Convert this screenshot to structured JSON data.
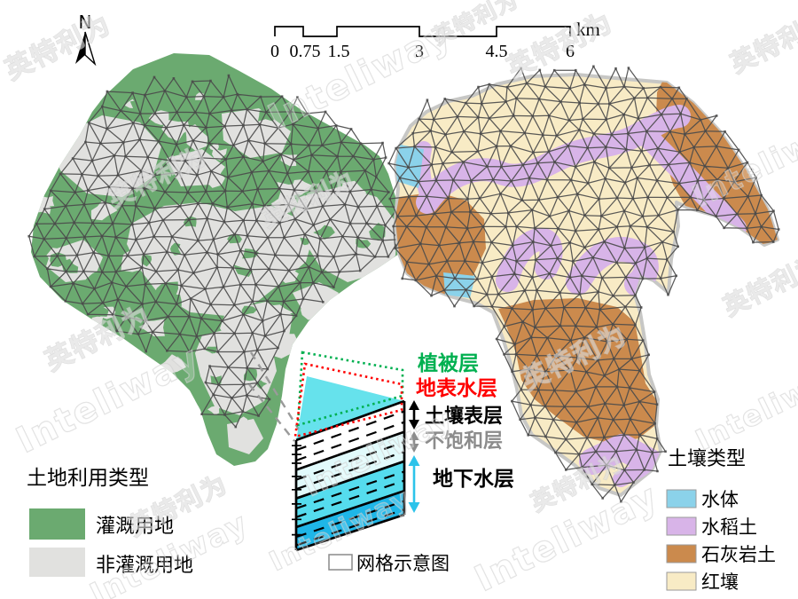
{
  "figure": {
    "north_label": "N",
    "scale_bar": {
      "tick_labels": [
        "0",
        "0.75",
        "1.5",
        "3",
        "4.5",
        "6"
      ],
      "unit": "km"
    },
    "land_use_map": {
      "legend_title": "土地利用类型",
      "classes": [
        {
          "label": "灌溉用地",
          "color": "#6BAA70"
        },
        {
          "label": "非灌溉用地",
          "color": "#E1E1DF"
        }
      ]
    },
    "soil_map": {
      "legend_title": "土壤类型",
      "classes": [
        {
          "label": "水体",
          "color": "#8BD2EA"
        },
        {
          "label": "水稻土",
          "color": "#D8B4E8"
        },
        {
          "label": "石灰岩土",
          "color": "#CB8A4D"
        },
        {
          "label": "红壤",
          "color": "#F8EBC5"
        }
      ]
    },
    "schematic": {
      "layer_labels": [
        {
          "text": "植被层",
          "color": "#00B050"
        },
        {
          "text": "地表水层",
          "color": "#FF0000"
        },
        {
          "text": "土壤表层",
          "color": "#000000"
        },
        {
          "text": "不饱和层",
          "color": "#8C8C8C"
        },
        {
          "text": "地下水层",
          "color": "#000000"
        }
      ],
      "arrow_colors": {
        "soil": "#000000",
        "unsaturated": "#8C8C8C",
        "groundwater": "#2CC3EA"
      },
      "layer_outline_colors": {
        "vegetation": "#00B050",
        "surface_water": "#FF0000"
      },
      "grid_legend_label": "网格示意图"
    },
    "watermark": {
      "latin": "Inteliway",
      "cjk": "英特利为"
    },
    "mesh_color": "#4B4B4B"
  }
}
